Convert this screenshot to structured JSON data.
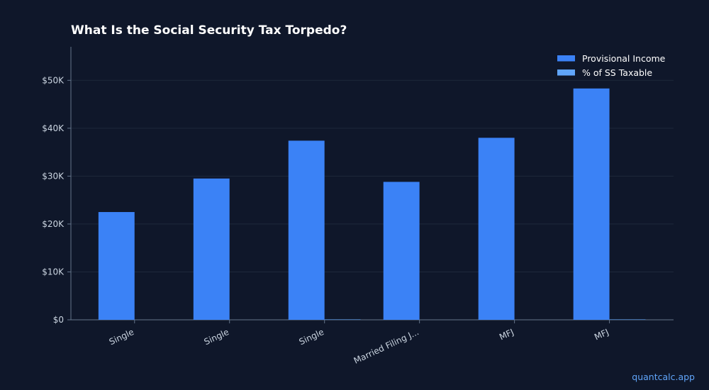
{
  "chart_data": {
    "type": "bar",
    "title": "What Is the Social Security Tax Torpedo?",
    "categories": [
      "Single",
      "Single",
      "Single",
      "Married Filing J...",
      "MFJ",
      "MFJ"
    ],
    "series": [
      {
        "name": "Provisional Income",
        "color": "#3b82f6",
        "values": [
          22500,
          29500,
          37400,
          28800,
          38000,
          48300
        ]
      },
      {
        "name": "% of SS Taxable",
        "color": "#60a5fa",
        "values": [
          0,
          0,
          85,
          0,
          0,
          85
        ]
      }
    ],
    "y_ticks": [
      0,
      10000,
      20000,
      30000,
      40000,
      50000
    ],
    "y_tick_labels": [
      "$0",
      "$10K",
      "$20K",
      "$30K",
      "$40K",
      "$50K"
    ],
    "ylim": [
      0,
      57000
    ],
    "xlabel": "",
    "ylabel": "",
    "grid": true,
    "legend_position": "top-right"
  },
  "watermark": "quantcalc.app",
  "colors": {
    "background": "#0f172a",
    "axis": "#64748b",
    "grid": "#1e293b",
    "tick_text": "#cbd5e1"
  }
}
